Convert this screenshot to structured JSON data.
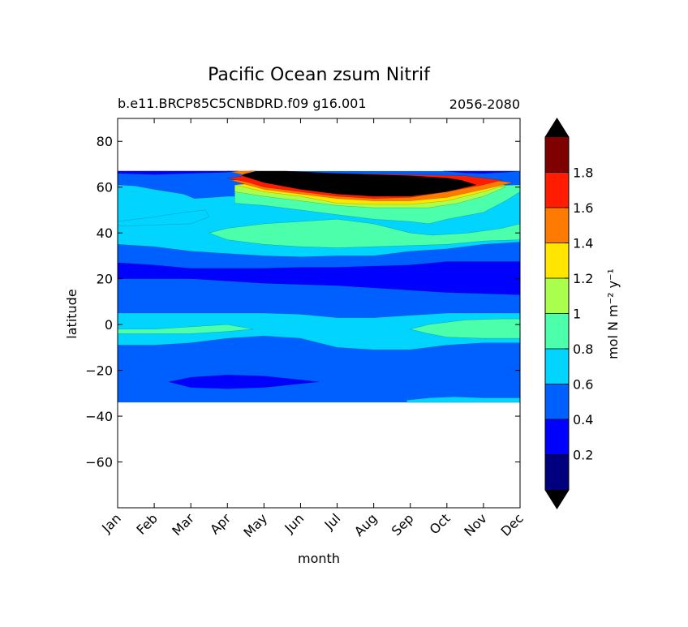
{
  "chart_data": {
    "type": "heatmap",
    "title": "Pacific Ocean zsum Nitrif",
    "subtitle_left": "b.e11.BRCP85C5CNBDRD.f09 g16.001",
    "subtitle_right": "2056-2080",
    "xlabel": "month",
    "ylabel": "latitude",
    "x_ticks": [
      "Jan",
      "Feb",
      "Mar",
      "Apr",
      "May",
      "Jun",
      "Jul",
      "Aug",
      "Sep",
      "Oct",
      "Nov",
      "Dec"
    ],
    "y_ticks": [
      80,
      60,
      40,
      20,
      0,
      -20,
      -40,
      -60
    ],
    "ylim": [
      -80,
      90
    ],
    "data_lat_range": [
      -34,
      67
    ],
    "colorbar": {
      "label": "mol N m⁻² y⁻¹",
      "tick_labels": [
        "0.2",
        "0.4",
        "0.6",
        "0.8",
        "1",
        "1.2",
        "1.4",
        "1.6",
        "1.8"
      ],
      "levels": [
        0,
        0.2,
        0.4,
        0.6,
        0.8,
        1.0,
        1.2,
        1.4,
        1.6,
        1.8,
        2.0
      ],
      "colors": [
        "#00007f",
        "#0000ff",
        "#0060ff",
        "#00d4ff",
        "#4cffaa",
        "#aaff4c",
        "#ffe500",
        "#ff7a00",
        "#ff1c00",
        "#7f0000"
      ],
      "over_color": "#000000",
      "under_color": "#000000",
      "extend": "both"
    },
    "background_band": {
      "lat_min": -34,
      "lat_max": 67,
      "value": 0.5
    },
    "regions": [
      {
        "value": 0.7,
        "points": [
          [
            0,
            61
          ],
          [
            0.5,
            60.5
          ],
          [
            1,
            59
          ],
          [
            1.8,
            57
          ],
          [
            2.1,
            55
          ],
          [
            3,
            56
          ],
          [
            4,
            56
          ],
          [
            5,
            54
          ],
          [
            6,
            51
          ],
          [
            7,
            50
          ],
          [
            8,
            50
          ],
          [
            9,
            52
          ],
          [
            10,
            54
          ],
          [
            10.8,
            57
          ],
          [
            11,
            60
          ],
          [
            11,
            47
          ],
          [
            11,
            40
          ],
          [
            11,
            36
          ],
          [
            10,
            35
          ],
          [
            9,
            33
          ],
          [
            8,
            32
          ],
          [
            7,
            30
          ],
          [
            6,
            30
          ],
          [
            5,
            29.5
          ],
          [
            4,
            30
          ],
          [
            3,
            31
          ],
          [
            2,
            32
          ],
          [
            1,
            34
          ],
          [
            0,
            35
          ],
          [
            0,
            45
          ]
        ]
      },
      {
        "value": 0.7,
        "points": [
          [
            0,
            45
          ],
          [
            0.5,
            46
          ],
          [
            1,
            47
          ],
          [
            1.8,
            49
          ],
          [
            2.4,
            50
          ],
          [
            2.5,
            47
          ],
          [
            2,
            44
          ],
          [
            1,
            43.5
          ],
          [
            0,
            43
          ]
        ]
      },
      {
        "value": 0.7,
        "points": [
          [
            0,
            5
          ],
          [
            1,
            5
          ],
          [
            2,
            5
          ],
          [
            3,
            5
          ],
          [
            4,
            5
          ],
          [
            5,
            4.5
          ],
          [
            6,
            3
          ],
          [
            7,
            3
          ],
          [
            8,
            4
          ],
          [
            9,
            5
          ],
          [
            10,
            5
          ],
          [
            11,
            5
          ],
          [
            11,
            -8
          ],
          [
            10,
            -8
          ],
          [
            9,
            -9
          ],
          [
            8,
            -11
          ],
          [
            7,
            -11
          ],
          [
            6,
            -10
          ],
          [
            5,
            -6
          ],
          [
            4,
            -5
          ],
          [
            3,
            -6
          ],
          [
            2,
            -8
          ],
          [
            1,
            -9
          ],
          [
            0,
            -9
          ]
        ]
      },
      {
        "value": 0.7,
        "points": [
          [
            7.9,
            -33
          ],
          [
            8.5,
            -32
          ],
          [
            9.2,
            -31.5
          ],
          [
            10,
            -32
          ],
          [
            11,
            -32
          ],
          [
            11,
            -34
          ],
          [
            7.9,
            -34
          ]
        ]
      },
      {
        "value": 0.9,
        "points": [
          [
            3.2,
            53
          ],
          [
            4,
            52
          ],
          [
            5,
            50
          ],
          [
            6,
            48
          ],
          [
            7,
            46
          ],
          [
            8,
            45
          ],
          [
            8.5,
            44
          ],
          [
            9,
            46
          ],
          [
            10,
            49
          ],
          [
            10.6,
            54
          ],
          [
            11,
            58
          ],
          [
            11,
            61
          ],
          [
            10,
            60.5
          ],
          [
            9,
            60
          ],
          [
            8,
            59
          ],
          [
            7,
            58.5
          ],
          [
            6,
            58
          ],
          [
            5,
            58.5
          ],
          [
            4,
            59.5
          ],
          [
            3.2,
            60
          ]
        ]
      },
      {
        "value": 0.9,
        "points": [
          [
            2.5,
            40
          ],
          [
            3,
            42
          ],
          [
            4,
            44
          ],
          [
            5,
            45
          ],
          [
            6,
            46
          ],
          [
            7,
            44
          ],
          [
            8,
            40
          ],
          [
            8.6,
            39
          ],
          [
            9.6,
            40
          ],
          [
            10.5,
            42
          ],
          [
            11,
            44
          ],
          [
            11,
            37
          ],
          [
            10,
            36.5
          ],
          [
            9,
            35
          ],
          [
            8,
            34.5
          ],
          [
            7,
            34
          ],
          [
            6,
            33.5
          ],
          [
            5,
            34
          ],
          [
            4,
            35
          ],
          [
            3,
            37
          ]
        ]
      },
      {
        "value": 0.9,
        "points": [
          [
            0,
            -2
          ],
          [
            1,
            -2
          ],
          [
            2,
            -1
          ],
          [
            3,
            0
          ],
          [
            3.7,
            -2
          ],
          [
            3,
            -3
          ],
          [
            2,
            -4
          ],
          [
            1,
            -4
          ],
          [
            0,
            -4
          ]
        ]
      },
      {
        "value": 0.9,
        "points": [
          [
            8,
            -2
          ],
          [
            8.5,
            0
          ],
          [
            9.5,
            2
          ],
          [
            10.5,
            2.5
          ],
          [
            11,
            2.5
          ],
          [
            11,
            -6
          ],
          [
            10,
            -6
          ],
          [
            9,
            -5.5
          ],
          [
            8.5,
            -4
          ]
        ]
      },
      {
        "value": 1.1,
        "points": [
          [
            3.2,
            58
          ],
          [
            4,
            56
          ],
          [
            5,
            54
          ],
          [
            6,
            52
          ],
          [
            7,
            51
          ],
          [
            8,
            51
          ],
          [
            8.5,
            51
          ],
          [
            9.3,
            53
          ],
          [
            10,
            56
          ],
          [
            10.6,
            60
          ],
          [
            10,
            61
          ],
          [
            9,
            61
          ],
          [
            8,
            60.5
          ],
          [
            7,
            60
          ],
          [
            6,
            59.5
          ],
          [
            5,
            59.5
          ],
          [
            4,
            60
          ],
          [
            3.2,
            61
          ]
        ]
      },
      {
        "value": 1.3,
        "points": [
          [
            3.2,
            61
          ],
          [
            4,
            58
          ],
          [
            5,
            56
          ],
          [
            6,
            53
          ],
          [
            7,
            52.5
          ],
          [
            8,
            52.5
          ],
          [
            9,
            54
          ],
          [
            10,
            58
          ],
          [
            10.6,
            61
          ],
          [
            10,
            62
          ],
          [
            9,
            62
          ],
          [
            8,
            62
          ],
          [
            7,
            62
          ],
          [
            6,
            62
          ],
          [
            5,
            62
          ],
          [
            4,
            62
          ]
        ]
      },
      {
        "value": 1.5,
        "points": [
          [
            3.1,
            63
          ],
          [
            4,
            59
          ],
          [
            5,
            57
          ],
          [
            6,
            55
          ],
          [
            7,
            54
          ],
          [
            8,
            54
          ],
          [
            9,
            55.5
          ],
          [
            10,
            59
          ],
          [
            10.8,
            62
          ],
          [
            10,
            63.5
          ],
          [
            9,
            64
          ],
          [
            8,
            64
          ],
          [
            7,
            64
          ],
          [
            6,
            64
          ],
          [
            5,
            64
          ],
          [
            4,
            64
          ]
        ]
      },
      {
        "value": 1.7,
        "points": [
          [
            3.0,
            64
          ],
          [
            3.6,
            62
          ],
          [
            4,
            60
          ],
          [
            5,
            58
          ],
          [
            6,
            56
          ],
          [
            7,
            55
          ],
          [
            8,
            55.5
          ],
          [
            9,
            58
          ],
          [
            10,
            61
          ],
          [
            10.5,
            63
          ],
          [
            9.5,
            65
          ],
          [
            8,
            65.5
          ],
          [
            6,
            66
          ],
          [
            4,
            66
          ]
        ]
      },
      {
        "value": 2.5,
        "points": [
          [
            3.4,
            65
          ],
          [
            4,
            62
          ],
          [
            5,
            59
          ],
          [
            6,
            57
          ],
          [
            7,
            56
          ],
          [
            8,
            56
          ],
          [
            9,
            58
          ],
          [
            9.8,
            61
          ],
          [
            9.4,
            63
          ],
          [
            9,
            64
          ],
          [
            8,
            65
          ],
          [
            7,
            65.5
          ],
          [
            6,
            66
          ],
          [
            4.6,
            67
          ],
          [
            3.6,
            67
          ]
        ]
      },
      {
        "value": 1.5,
        "points": [
          [
            3.0,
            67
          ],
          [
            3.4,
            65.5
          ],
          [
            3.8,
            67
          ]
        ]
      },
      {
        "value": 0.3,
        "points": [
          [
            0,
            67
          ],
          [
            0,
            66
          ],
          [
            1,
            65.5
          ],
          [
            2,
            66
          ],
          [
            3,
            66.5
          ],
          [
            3.3,
            67
          ]
        ]
      },
      {
        "value": 0.3,
        "points": [
          [
            8.9,
            67
          ],
          [
            9.5,
            66.2
          ],
          [
            10,
            66
          ],
          [
            10.6,
            66.5
          ],
          [
            11,
            67
          ]
        ]
      },
      {
        "value": 0.3,
        "points": [
          [
            0,
            27
          ],
          [
            1,
            26
          ],
          [
            2,
            24.5
          ],
          [
            3,
            24.5
          ],
          [
            4,
            24.5
          ],
          [
            5,
            25
          ],
          [
            6,
            25
          ],
          [
            7,
            25.5
          ],
          [
            8,
            26
          ],
          [
            9,
            27.5
          ],
          [
            10,
            27.5
          ],
          [
            11,
            27.5
          ],
          [
            11,
            13
          ],
          [
            10,
            13.5
          ],
          [
            9,
            14
          ],
          [
            8,
            15
          ],
          [
            7,
            16
          ],
          [
            6,
            17
          ],
          [
            5,
            17.5
          ],
          [
            4,
            18
          ],
          [
            3,
            19
          ],
          [
            2,
            20
          ],
          [
            1,
            20
          ],
          [
            0,
            20
          ]
        ]
      },
      {
        "value": 0.3,
        "points": [
          [
            1.4,
            -25
          ],
          [
            2,
            -23
          ],
          [
            3,
            -22
          ],
          [
            4,
            -22.5
          ],
          [
            5.5,
            -25
          ],
          [
            4,
            -27.5
          ],
          [
            3,
            -28
          ],
          [
            2,
            -27.5
          ]
        ]
      }
    ]
  }
}
